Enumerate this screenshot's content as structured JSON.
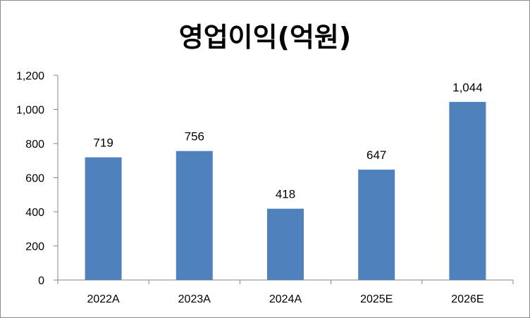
{
  "chart_data": {
    "type": "bar",
    "title": "영업이익(억원)",
    "categories": [
      "2022A",
      "2023A",
      "2024A",
      "2025E",
      "2026E"
    ],
    "values": [
      719,
      756,
      418,
      647,
      1044
    ],
    "data_labels": [
      "719",
      "756",
      "418",
      "647",
      "1,044"
    ],
    "ylim": [
      0,
      1200
    ],
    "yticks": [
      0,
      200,
      400,
      600,
      800,
      1000,
      1200
    ],
    "ytick_labels": [
      "0",
      "200",
      "400",
      "600",
      "800",
      "1,000",
      "1,200"
    ],
    "xlabel": "",
    "ylabel": "",
    "grid": false,
    "legend": "none",
    "colors": {
      "bar": "#4F81BD",
      "axis": "#868686",
      "border": "#8c8c8c"
    }
  }
}
